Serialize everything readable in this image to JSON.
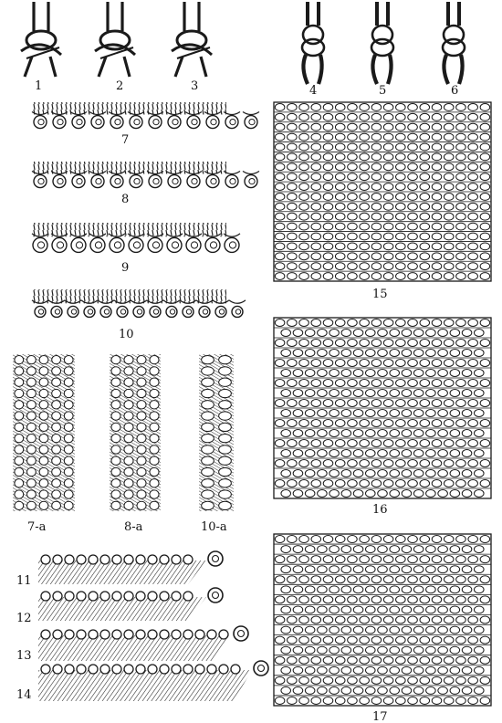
{
  "figures": {
    "knot_1": "1",
    "knot_2": "2",
    "knot_3": "3",
    "knot_4": "4",
    "knot_5": "5",
    "knot_6": "6",
    "fringe_7": "7",
    "fringe_8": "8",
    "fringe_9": "9",
    "fringe_10": "10",
    "panel_7a": "7-a",
    "panel_8a": "8-a",
    "panel_10a": "10-a",
    "edge_11": "11",
    "edge_12": "12",
    "edge_13": "13",
    "edge_14": "14",
    "weave_15": "15",
    "weave_16": "16",
    "weave_17": "17"
  },
  "ink_color": "#1a1a1a"
}
